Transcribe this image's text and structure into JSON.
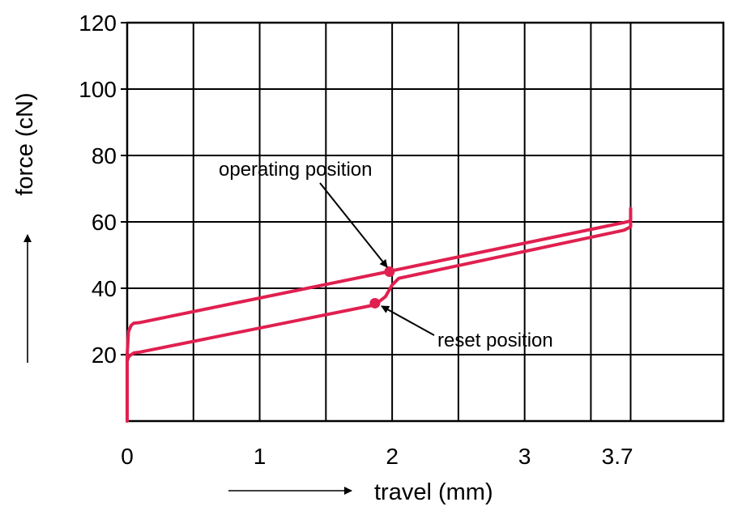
{
  "chart_data": {
    "type": "line",
    "title": "",
    "xlabel": "travel (mm)",
    "ylabel": "force (cN)",
    "xlim": [
      0,
      4.5
    ],
    "ylim": [
      0,
      120
    ],
    "x_ticks": [
      0,
      1,
      2,
      3,
      3.7
    ],
    "x_grid": [
      0,
      0.5,
      1,
      1.5,
      2,
      2.5,
      3,
      3.5,
      3.8,
      4.5
    ],
    "y_ticks": [
      20,
      40,
      60,
      80,
      100,
      120
    ],
    "grid": true,
    "line_color": "#e0204f",
    "series": [
      {
        "x": [
          0,
          0,
          0.01,
          0.03,
          0.05,
          0.1,
          1.97,
          2.0,
          3.75,
          3.8,
          3.8,
          3.8
        ],
        "y": [
          0,
          20,
          27,
          28.8,
          29.5,
          29.7,
          45,
          45.3,
          59.8,
          60.3,
          62,
          64
        ]
      },
      {
        "x": [
          0,
          0,
          0.01,
          0.03,
          0.05,
          0.1,
          1.87,
          1.95,
          2.0,
          2.05,
          3.75,
          3.8,
          3.8
        ],
        "y": [
          0,
          18,
          19.3,
          20,
          20.5,
          20.8,
          35,
          37.5,
          41,
          43,
          57.5,
          58.5,
          62
        ]
      }
    ],
    "markers": [
      {
        "x": 1.98,
        "y": 45
      },
      {
        "x": 1.87,
        "y": 35.5
      }
    ],
    "annotations": [
      {
        "text": "operating position",
        "x": 1.98,
        "y": 45
      },
      {
        "text": "reset position",
        "x": 1.87,
        "y": 35.5
      }
    ]
  }
}
